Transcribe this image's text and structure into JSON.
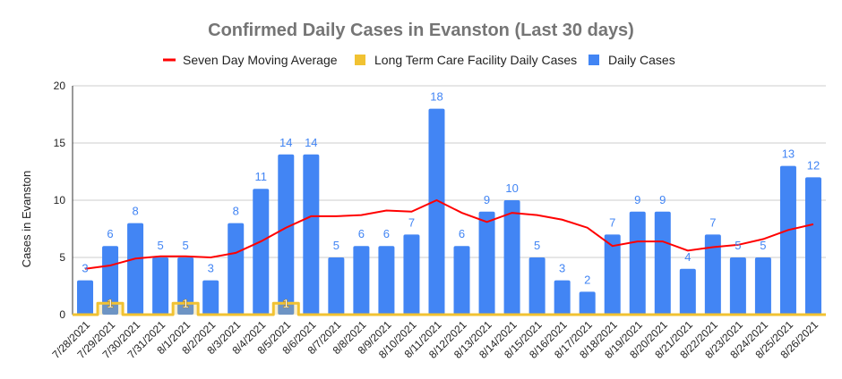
{
  "chart_data": {
    "type": "bar",
    "title": "Confirmed Daily Cases in Evanston (Last 30 days)",
    "xlabel": "",
    "ylabel": "Cases in Evanston",
    "ylim": [
      0,
      20
    ],
    "yticks": [
      0,
      5,
      10,
      15,
      20
    ],
    "grid": true,
    "legend_position": "top",
    "categories": [
      "7/28/2021",
      "7/29/2021",
      "7/30/2021",
      "7/31/2021",
      "8/1/2021",
      "8/2/2021",
      "8/3/2021",
      "8/4/2021",
      "8/5/2021",
      "8/6/2021",
      "8/7/2021",
      "8/8/2021",
      "8/9/2021",
      "8/10/2021",
      "8/11/2021",
      "8/12/2021",
      "8/13/2021",
      "8/14/2021",
      "8/15/2021",
      "8/16/2021",
      "8/17/2021",
      "8/18/2021",
      "8/19/2021",
      "8/20/2021",
      "8/21/2021",
      "8/22/2021",
      "8/23/2021",
      "8/24/2021",
      "8/25/2021",
      "8/26/2021"
    ],
    "series": [
      {
        "name": "Seven Day Moving Average",
        "type": "line",
        "color": "#ff0000",
        "values": [
          4.0,
          4.3,
          4.9,
          5.1,
          5.1,
          5.0,
          5.4,
          6.4,
          7.6,
          8.6,
          8.6,
          8.7,
          9.1,
          9.0,
          10.0,
          8.9,
          8.1,
          8.9,
          8.7,
          8.3,
          7.6,
          6.0,
          6.4,
          6.4,
          5.6,
          5.9,
          6.1,
          6.6,
          7.4,
          7.9
        ]
      },
      {
        "name": "Long Term Care Facility Daily Cases",
        "type": "stepped-area",
        "color": "#f1c232",
        "values": [
          0,
          1,
          0,
          0,
          1,
          0,
          0,
          0,
          1,
          0,
          0,
          0,
          0,
          0,
          0,
          0,
          0,
          0,
          0,
          0,
          0,
          0,
          0,
          0,
          0,
          0,
          0,
          0,
          0,
          0
        ]
      },
      {
        "name": "Daily Cases",
        "type": "bar",
        "color": "#4285f4",
        "values": [
          3,
          6,
          8,
          5,
          5,
          3,
          8,
          11,
          14,
          14,
          5,
          6,
          6,
          7,
          18,
          6,
          9,
          10,
          5,
          3,
          2,
          7,
          9,
          9,
          4,
          7,
          5,
          5,
          13,
          12
        ]
      }
    ]
  }
}
